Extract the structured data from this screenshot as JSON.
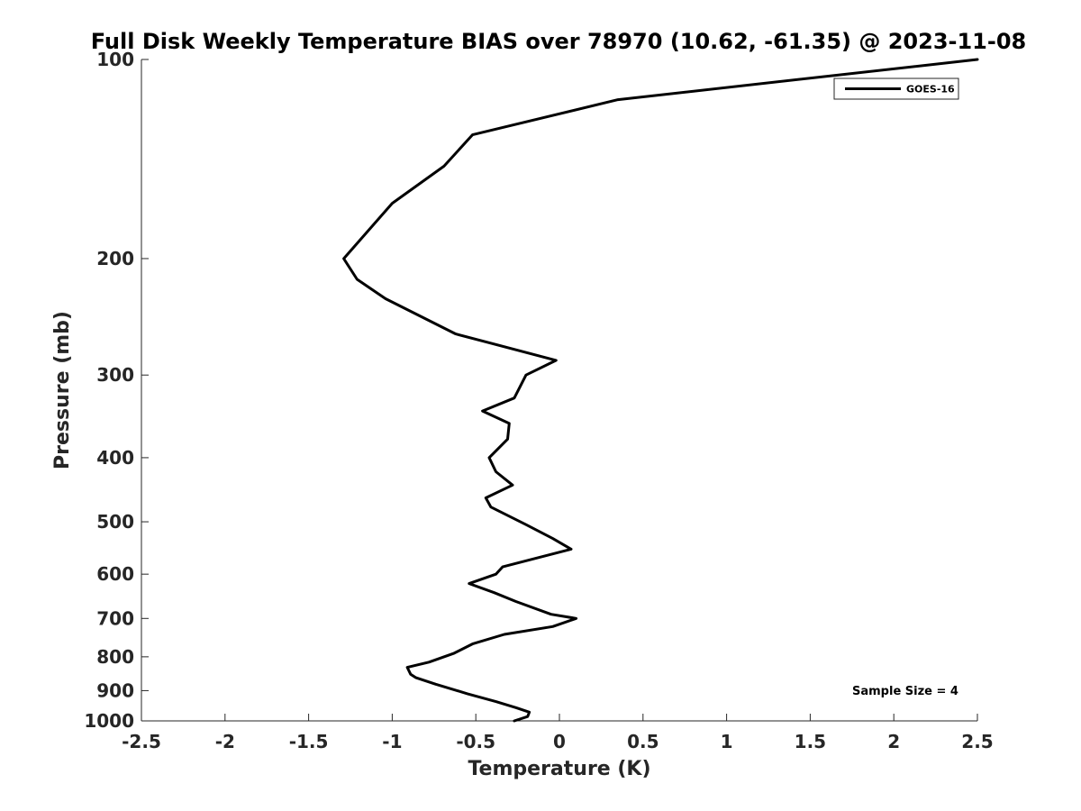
{
  "chart_data": {
    "type": "line",
    "title": "Full Disk Weekly Temperature BIAS over 78970 (10.62, -61.35) @ 2023-11-08",
    "xlabel": "Temperature (K)",
    "ylabel": "Pressure (mb)",
    "xlim": [
      -2.5,
      2.5
    ],
    "ylim": [
      100,
      1000
    ],
    "y_scale": "log",
    "y_reversed": true,
    "x_ticks": [
      -2.5,
      -2,
      -1.5,
      -1,
      -0.5,
      0,
      0.5,
      1,
      1.5,
      2,
      2.5
    ],
    "x_tick_labels": [
      "-2.5",
      "-2",
      "-1.5",
      "-1",
      "-0.5",
      "0",
      "0.5",
      "1",
      "1.5",
      "2",
      "2.5"
    ],
    "y_ticks": [
      100,
      200,
      300,
      400,
      500,
      600,
      700,
      800,
      900,
      1000
    ],
    "y_tick_labels": [
      "100",
      "200",
      "300",
      "400",
      "500",
      "600",
      "700",
      "800",
      "900",
      "1000"
    ],
    "grid": false,
    "legend_position": "top-right",
    "series": [
      {
        "name": "GOES-16",
        "color": "#000000",
        "points": [
          {
            "x": 2.5,
            "y": 100
          },
          {
            "x": 0.35,
            "y": 115
          },
          {
            "x": -0.52,
            "y": 130
          },
          {
            "x": -0.69,
            "y": 145
          },
          {
            "x": -1.0,
            "y": 165
          },
          {
            "x": -1.29,
            "y": 200
          },
          {
            "x": -1.21,
            "y": 215
          },
          {
            "x": -1.04,
            "y": 230
          },
          {
            "x": -0.62,
            "y": 260
          },
          {
            "x": -0.02,
            "y": 285
          },
          {
            "x": -0.2,
            "y": 300
          },
          {
            "x": -0.27,
            "y": 325
          },
          {
            "x": -0.46,
            "y": 340
          },
          {
            "x": -0.3,
            "y": 355
          },
          {
            "x": -0.31,
            "y": 375
          },
          {
            "x": -0.42,
            "y": 400
          },
          {
            "x": -0.38,
            "y": 420
          },
          {
            "x": -0.28,
            "y": 440
          },
          {
            "x": -0.44,
            "y": 460
          },
          {
            "x": -0.41,
            "y": 475
          },
          {
            "x": -0.2,
            "y": 505
          },
          {
            "x": -0.04,
            "y": 530
          },
          {
            "x": 0.07,
            "y": 550
          },
          {
            "x": -0.34,
            "y": 585
          },
          {
            "x": -0.38,
            "y": 600
          },
          {
            "x": -0.54,
            "y": 620
          },
          {
            "x": -0.39,
            "y": 640
          },
          {
            "x": -0.26,
            "y": 660
          },
          {
            "x": -0.05,
            "y": 690
          },
          {
            "x": 0.1,
            "y": 700
          },
          {
            "x": -0.04,
            "y": 720
          },
          {
            "x": -0.33,
            "y": 740
          },
          {
            "x": -0.52,
            "y": 765
          },
          {
            "x": -0.63,
            "y": 790
          },
          {
            "x": -0.78,
            "y": 815
          },
          {
            "x": -0.91,
            "y": 830
          },
          {
            "x": -0.89,
            "y": 850
          },
          {
            "x": -0.86,
            "y": 860
          },
          {
            "x": -0.74,
            "y": 880
          },
          {
            "x": -0.55,
            "y": 910
          },
          {
            "x": -0.38,
            "y": 935
          },
          {
            "x": -0.26,
            "y": 955
          },
          {
            "x": -0.18,
            "y": 970
          },
          {
            "x": -0.19,
            "y": 985
          },
          {
            "x": -0.27,
            "y": 1000
          }
        ]
      }
    ],
    "annotations": [
      "Sample Size = 4"
    ]
  }
}
